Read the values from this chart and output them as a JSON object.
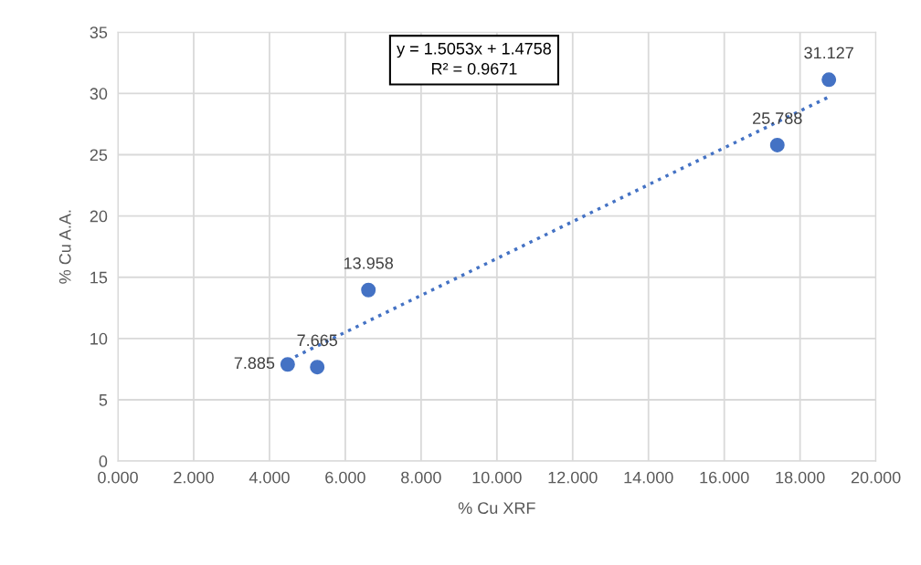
{
  "chart_data": {
    "type": "scatter",
    "xlabel": "% Cu XRF",
    "ylabel": "% Cu A.A.",
    "annotations": [
      "y = 1.5053x + 1.4758\nR² = 0.9671"
    ],
    "series": [
      {
        "color": "#4472c4",
        "marker": "circle",
        "x": [
          4.48,
          5.26,
          6.61,
          17.4,
          18.76
        ],
        "values": [
          7.885,
          7.665,
          13.958,
          25.788,
          31.127
        ],
        "value_labels": [
          "7.885",
          "7.665",
          "13.958",
          "25.788",
          "31.127"
        ]
      },
      {
        "type": "line",
        "color": "#4472c4",
        "line_style": "dotted",
        "marker": "none",
        "x": [
          4.48,
          18.76
        ],
        "values": [
          8.22,
          29.72
        ]
      }
    ],
    "xlim": [
      0,
      20
    ],
    "xticks": [
      {
        "value": 0,
        "label": "0.000"
      },
      {
        "value": 2,
        "label": "2.000"
      },
      {
        "value": 4,
        "label": "4.000"
      },
      {
        "value": 6,
        "label": "6.000"
      },
      {
        "value": 8,
        "label": "8.000"
      },
      {
        "value": 10,
        "label": "10.000"
      },
      {
        "value": 12,
        "label": "12.000"
      },
      {
        "value": 14,
        "label": "14.000"
      },
      {
        "value": 16,
        "label": "16.000"
      },
      {
        "value": 18,
        "label": "18.000"
      },
      {
        "value": 20,
        "label": "20.000"
      }
    ],
    "ylim": [
      0,
      35
    ],
    "yticks": [
      0,
      5,
      10,
      15,
      20,
      25,
      30,
      35
    ],
    "grid": true
  }
}
